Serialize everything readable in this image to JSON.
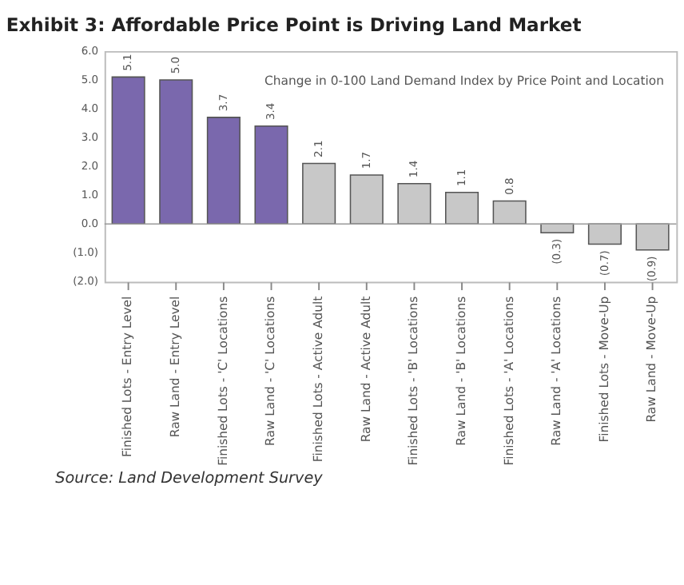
{
  "chart_data": {
    "type": "bar",
    "title": "Exhibit 3: Affordable Price Point is Driving Land Market",
    "categories": [
      "Finished Lots - Entry Level",
      "Raw Land - Entry Level",
      "Finished Lots - 'C' Locations",
      "Raw Land - 'C' Locations",
      "Finished Lots - Active Adult",
      "Raw Land - Active Adult",
      "Finished Lots - 'B' Locations",
      "Raw Land - 'B' Locations",
      "Finished Lots - 'A' Locations",
      "Raw Land - 'A' Locations",
      "Finished Lots - Move-Up",
      "Raw Land - Move-Up"
    ],
    "values": [
      5.1,
      5.0,
      3.7,
      3.4,
      2.1,
      1.7,
      1.4,
      1.1,
      0.8,
      -0.3,
      -0.7,
      -0.9
    ],
    "value_labels": [
      "5.1",
      "5.0",
      "3.7",
      "3.4",
      "2.1",
      "1.7",
      "1.4",
      "1.1",
      "0.8",
      "(0.3)",
      "(0.7)",
      "(0.9)"
    ],
    "colors": [
      "#7a68ad",
      "#7a68ad",
      "#7a68ad",
      "#7a68ad",
      "#c8c8c8",
      "#c8c8c8",
      "#c8c8c8",
      "#c8c8c8",
      "#c8c8c8",
      "#c8c8c8",
      "#c8c8c8",
      "#c8c8c8"
    ],
    "ylim": [
      -2,
      6
    ],
    "yticks": [
      {
        "value": -2,
        "label": "(2.0)"
      },
      {
        "value": -1,
        "label": "(1.0)"
      },
      {
        "value": 0,
        "label": "0.0"
      },
      {
        "value": 1,
        "label": "1.0"
      },
      {
        "value": 2,
        "label": "2.0"
      },
      {
        "value": 3,
        "label": "3.0"
      },
      {
        "value": 4,
        "label": "4.0"
      },
      {
        "value": 5,
        "label": "5.0"
      },
      {
        "value": 6,
        "label": "6.0"
      }
    ],
    "annotations": [
      "Change in 0-100 Land Demand Index by Price Point and Location",
      "Source: Land Development Survey"
    ]
  }
}
